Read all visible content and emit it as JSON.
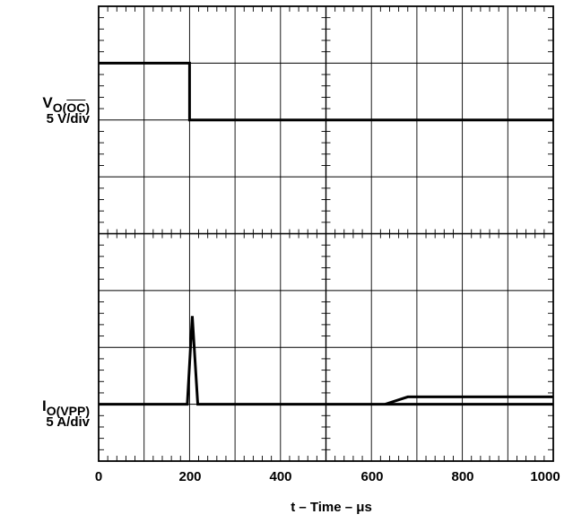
{
  "chart_data": {
    "type": "line",
    "xlabel": "t – Time – μs",
    "xlim": [
      0,
      1000
    ],
    "x_ticks": [
      "0",
      "200",
      "400",
      "600",
      "800",
      "1000"
    ],
    "grid": true,
    "divisions": {
      "x": 10,
      "y": 8
    },
    "series": [
      {
        "name": "VO(OC)",
        "label_parts": {
          "prefix": "V",
          "sub_plain": "O(",
          "sub_overline": "OC",
          "sub_close": ")"
        },
        "scale": "5 V/div",
        "x": [
          0,
          200,
          200,
          1000
        ],
        "y_div": [
          7.0,
          7.0,
          6.0,
          6.0
        ]
      },
      {
        "name": "IO(VPP)",
        "label_parts": {
          "prefix": "I",
          "sub_plain": "O(VPP)"
        },
        "scale": "5 A/div",
        "x": [
          0,
          195,
          206,
          218,
          1000
        ],
        "y_div": [
          1.0,
          1.0,
          2.55,
          1.0,
          1.0
        ]
      },
      {
        "name": "IO(VPP) step",
        "x": [
          630,
          680,
          1000
        ],
        "y_div": [
          1.0,
          1.13,
          1.13
        ]
      }
    ]
  }
}
